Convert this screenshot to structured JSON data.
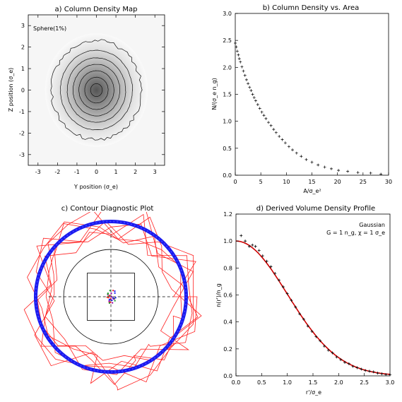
{
  "chart_data": [
    {
      "id": "a",
      "type": "heatmap",
      "title": "a) Column Density Map",
      "label": "Sphere(1%)",
      "xlabel": "Y position (σ_e)",
      "ylabel": "Z position (σ_e)",
      "xlim": [
        -3.5,
        3.5
      ],
      "ylim": [
        -3.5,
        3.5
      ],
      "xticks": [
        "-3",
        "-2",
        "-1",
        "0",
        "1",
        "2",
        "3"
      ],
      "yticks": [
        "-3",
        "-2",
        "-1",
        "0",
        "1",
        "2",
        "3"
      ],
      "contour_radii": [
        0.3,
        0.6,
        0.9,
        1.2,
        1.5,
        1.85,
        2.3
      ],
      "peak_value": 2.45,
      "colormap": "white-to-grey"
    },
    {
      "id": "b",
      "type": "scatter",
      "title": "b) Column Density vs. Area",
      "xlabel": "A/σ_e²",
      "ylabel": "N/(σ_e n_g)",
      "xlim": [
        0,
        30
      ],
      "ylim": [
        0,
        3.0
      ],
      "xticks": [
        "0",
        "5",
        "10",
        "15",
        "20",
        "25",
        "30"
      ],
      "yticks": [
        "0.0",
        "0.5",
        "1.0",
        "1.5",
        "2.0",
        "2.5",
        "3.0"
      ],
      "marker": "+",
      "points": [
        [
          0.0,
          2.45
        ],
        [
          0.2,
          2.38
        ],
        [
          0.4,
          2.3
        ],
        [
          0.6,
          2.23
        ],
        [
          0.8,
          2.16
        ],
        [
          1.0,
          2.1
        ],
        [
          1.3,
          2.01
        ],
        [
          1.6,
          1.93
        ],
        [
          1.9,
          1.85
        ],
        [
          2.2,
          1.77
        ],
        [
          2.5,
          1.7
        ],
        [
          2.8,
          1.63
        ],
        [
          3.1,
          1.57
        ],
        [
          3.4,
          1.5
        ],
        [
          3.7,
          1.44
        ],
        [
          4.0,
          1.38
        ],
        [
          4.4,
          1.31
        ],
        [
          4.8,
          1.24
        ],
        [
          5.2,
          1.17
        ],
        [
          5.6,
          1.11
        ],
        [
          6.0,
          1.05
        ],
        [
          6.5,
          0.98
        ],
        [
          7.0,
          0.92
        ],
        [
          7.5,
          0.85
        ],
        [
          8.0,
          0.79
        ],
        [
          8.6,
          0.72
        ],
        [
          9.2,
          0.66
        ],
        [
          9.8,
          0.6
        ],
        [
          10.5,
          0.53
        ],
        [
          11.2,
          0.47
        ],
        [
          12.0,
          0.41
        ],
        [
          12.9,
          0.35
        ],
        [
          13.9,
          0.29
        ],
        [
          15.0,
          0.24
        ],
        [
          16.2,
          0.19
        ],
        [
          17.5,
          0.15
        ],
        [
          18.8,
          0.12
        ],
        [
          20.2,
          0.09
        ],
        [
          22.0,
          0.07
        ],
        [
          24.0,
          0.05
        ],
        [
          26.5,
          0.04
        ],
        [
          28.5,
          0.02
        ]
      ]
    },
    {
      "id": "c",
      "type": "scatter",
      "title": "c) Contour Diagnostic Plot",
      "ring_radius": 1.75,
      "inner_circle_radius": 1.1,
      "box_half_width": 0.55,
      "range": [
        -2.3,
        2.3
      ],
      "colors": {
        "contours": "#ff2020",
        "ring": "#1a1aee",
        "circle": "#000000",
        "centroid": "#1a9a2a"
      }
    },
    {
      "id": "d",
      "type": "line",
      "title": "d) Derived Volume Density Profile",
      "xlabel": "r'/σ_e",
      "ylabel": "n(r')/n_g",
      "xlim": [
        0.0,
        3.0
      ],
      "ylim": [
        0.0,
        1.2
      ],
      "xticks": [
        "0.0",
        "0.5",
        "1.0",
        "1.5",
        "2.0",
        "2.5",
        "3.0"
      ],
      "yticks": [
        "0.0",
        "0.2",
        "0.4",
        "0.6",
        "0.8",
        "1.0",
        "1.2"
      ],
      "legend_title": "Gaussian",
      "legend_text": "G = 1 n_g, χ = 1 σ_e",
      "series": [
        {
          "kind": "model",
          "color": "#cc0000",
          "formula": "exp(-x^2/2)"
        },
        {
          "kind": "data",
          "color": "#000000",
          "marker": "+",
          "points": [
            [
              0.1,
              1.04
            ],
            [
              0.18,
              1.0
            ],
            [
              0.26,
              0.96
            ],
            [
              0.32,
              0.97
            ],
            [
              0.38,
              0.96
            ],
            [
              0.45,
              0.93
            ],
            [
              0.52,
              0.89
            ],
            [
              0.6,
              0.85
            ],
            [
              0.68,
              0.81
            ],
            [
              0.76,
              0.76
            ],
            [
              0.84,
              0.71
            ],
            [
              0.92,
              0.66
            ],
            [
              1.0,
              0.61
            ],
            [
              1.08,
              0.56
            ],
            [
              1.16,
              0.51
            ],
            [
              1.24,
              0.46
            ],
            [
              1.32,
              0.42
            ],
            [
              1.4,
              0.37
            ],
            [
              1.48,
              0.33
            ],
            [
              1.56,
              0.29
            ],
            [
              1.64,
              0.26
            ],
            [
              1.72,
              0.22
            ],
            [
              1.8,
              0.19
            ],
            [
              1.88,
              0.17
            ],
            [
              1.96,
              0.14
            ],
            [
              2.04,
              0.12
            ],
            [
              2.12,
              0.1
            ],
            [
              2.2,
              0.09
            ],
            [
              2.28,
              0.07
            ],
            [
              2.36,
              0.06
            ],
            [
              2.44,
              0.05
            ],
            [
              2.52,
              0.04
            ],
            [
              2.6,
              0.035
            ],
            [
              2.68,
              0.03
            ],
            [
              2.76,
              0.02
            ],
            [
              2.84,
              0.015
            ],
            [
              2.92,
              0.01
            ],
            [
              3.0,
              0.008
            ]
          ]
        }
      ]
    }
  ]
}
